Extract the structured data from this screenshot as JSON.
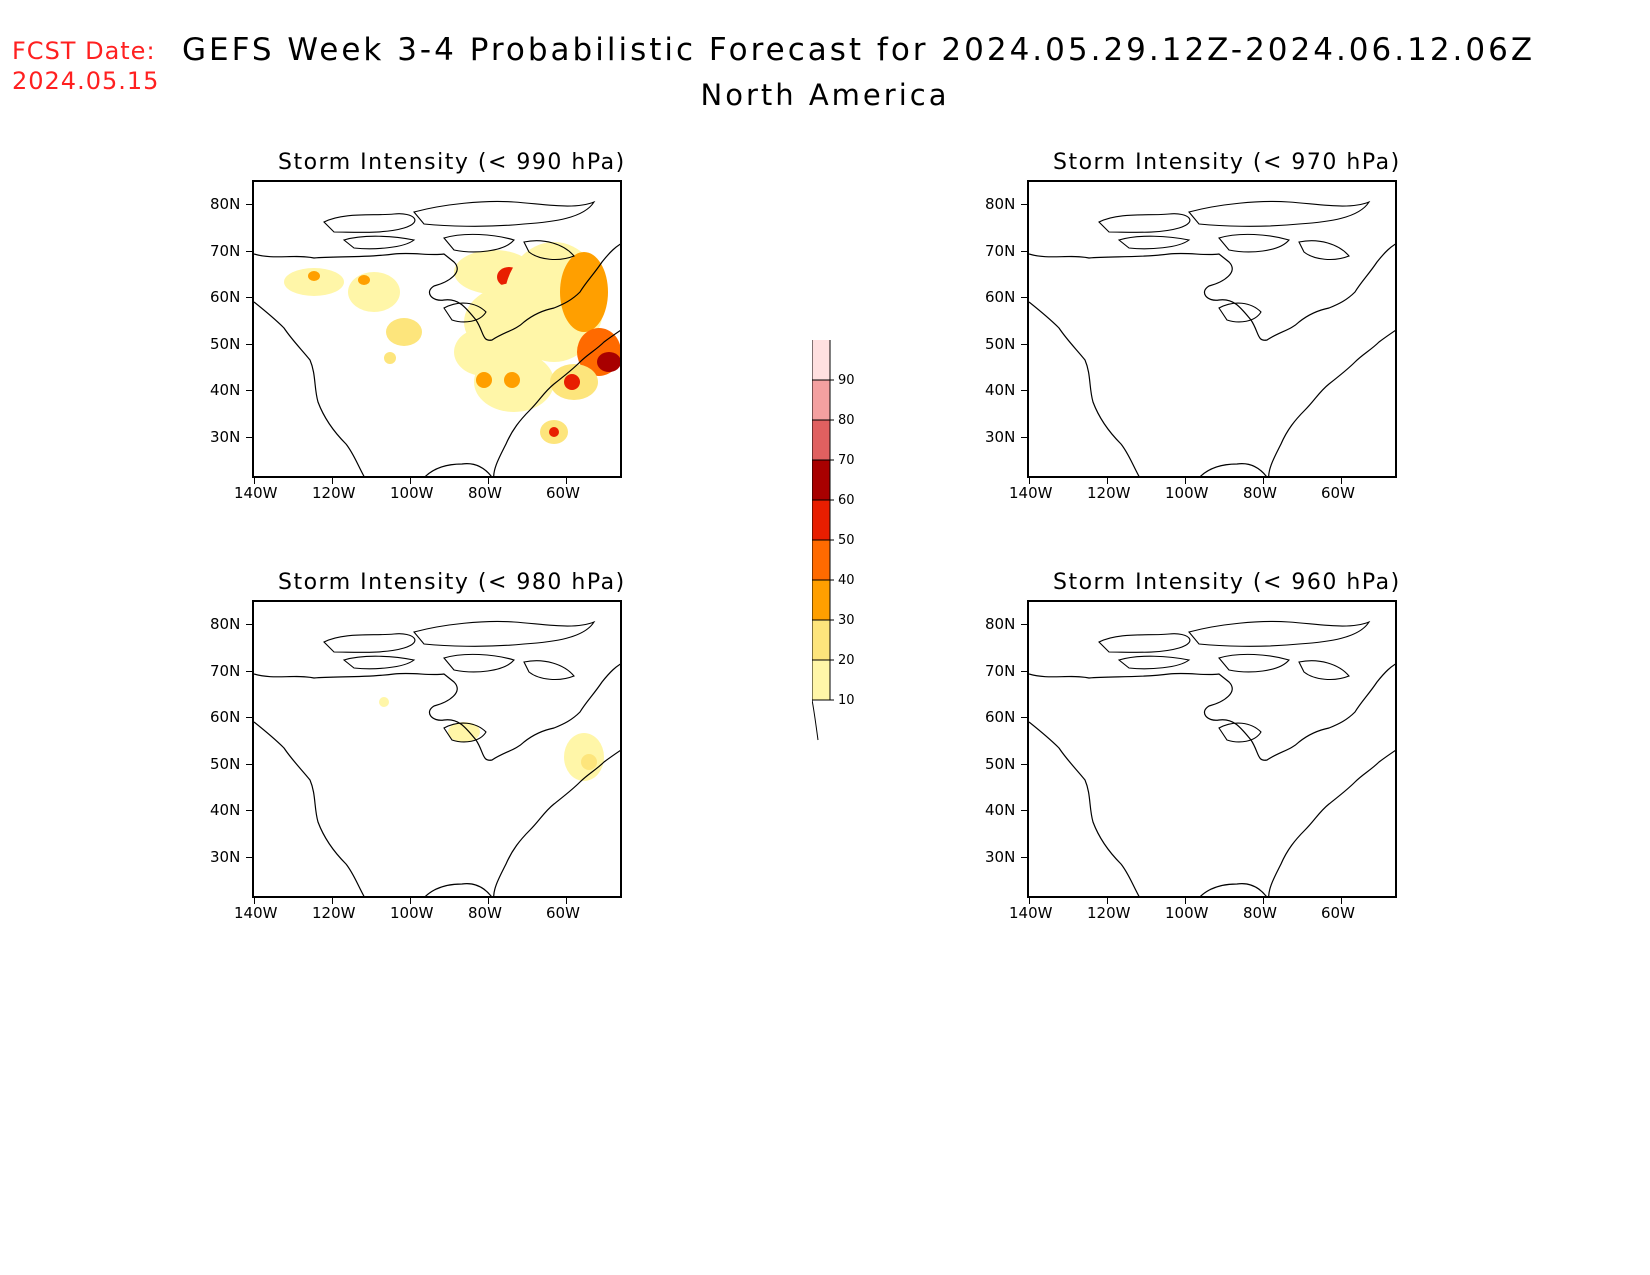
{
  "header": {
    "fcst_label": "FCST Date:",
    "fcst_date": "2024.05.15",
    "title": "GEFS Week 3-4 Probabilistic Forecast for 2024.05.29.12Z-2024.06.12.06Z",
    "subtitle": "North America"
  },
  "panels": [
    {
      "id": "p990",
      "title": "Storm Intensity (< 990 hPa)"
    },
    {
      "id": "p970",
      "title": "Storm Intensity (< 970 hPa)"
    },
    {
      "id": "p980",
      "title": "Storm Intensity (< 980 hPa)"
    },
    {
      "id": "p960",
      "title": "Storm Intensity (< 960 hPa)"
    }
  ],
  "axes": {
    "lat_labels": [
      "80N",
      "70N",
      "60N",
      "50N",
      "40N",
      "30N"
    ],
    "lon_labels": [
      "140W",
      "120W",
      "100W",
      "80W",
      "60W"
    ]
  },
  "colorbar": {
    "levels": [
      "10",
      "20",
      "30",
      "40",
      "50",
      "60",
      "70",
      "80",
      "90"
    ],
    "colors": [
      "#fff6a8",
      "#fde57c",
      "#ff9f00",
      "#ff6a00",
      "#e81e00",
      "#a80000",
      "#e06060",
      "#f4a0a0",
      "#ffe0e0"
    ]
  }
}
